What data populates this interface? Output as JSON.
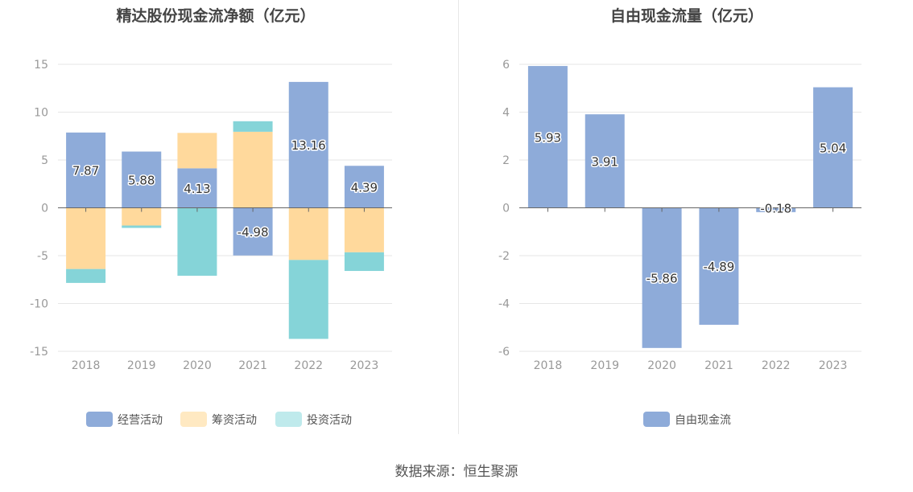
{
  "colors": {
    "operating": "#8eabd9",
    "financing": "#ffd99c",
    "investing": "#85d4d8",
    "free_cash_flow": "#8eabd9",
    "financing_legend": "#ffe9c2",
    "investing_legend": "#bfeaec",
    "axis_text": "#999999",
    "title_text": "#444444",
    "grid": "#e6e6e6",
    "zero_line": "#666666"
  },
  "source_text": "数据来源：恒生聚源",
  "chart_data": [
    {
      "type": "bar",
      "stacked": true,
      "title": "精达股份现金流净额（亿元）",
      "categories": [
        "2018",
        "2019",
        "2020",
        "2021",
        "2022",
        "2023"
      ],
      "ylim": [
        -15,
        15
      ],
      "yticks": [
        15,
        10,
        5,
        0,
        -5,
        -10,
        -15
      ],
      "ytick_labels": [
        "15",
        "10",
        "5",
        "0",
        "-5",
        "-10",
        "-15"
      ],
      "grid": true,
      "legend_position": "bottom",
      "series": [
        {
          "name": "经营活动",
          "color": "#8eabd9",
          "legend_color": "#8eabd9",
          "values": [
            7.87,
            5.88,
            4.13,
            -4.98,
            13.16,
            4.39
          ],
          "labels": [
            "7.87",
            "5.88",
            "4.13",
            "-4.98",
            "13.16",
            "4.39"
          ]
        },
        {
          "name": "筹资活动",
          "color": "#ffd99c",
          "legend_color": "#ffe9c2",
          "values": [
            -6.4,
            -1.85,
            3.7,
            7.95,
            -5.45,
            -4.65
          ]
        },
        {
          "name": "投资活动",
          "color": "#85d4d8",
          "legend_color": "#bfeaec",
          "values": [
            -1.45,
            -0.25,
            -7.1,
            1.1,
            -8.25,
            -1.95
          ]
        }
      ]
    },
    {
      "type": "bar",
      "title": "自由现金流量（亿元）",
      "categories": [
        "2018",
        "2019",
        "2020",
        "2021",
        "2022",
        "2023"
      ],
      "ylim": [
        -6,
        6
      ],
      "yticks": [
        6,
        4,
        2,
        0,
        -2,
        -4,
        -6
      ],
      "ytick_labels": [
        "6",
        "4",
        "2",
        "0",
        "-2",
        "-4",
        "-6"
      ],
      "grid": true,
      "legend_position": "bottom",
      "series": [
        {
          "name": "自由现金流",
          "color": "#8eabd9",
          "legend_color": "#8eabd9",
          "values": [
            5.93,
            3.91,
            -5.86,
            -4.89,
            -0.18,
            5.04
          ],
          "labels": [
            "5.93",
            "3.91",
            "-5.86",
            "-4.89",
            "-0.18",
            "5.04"
          ]
        }
      ]
    }
  ]
}
